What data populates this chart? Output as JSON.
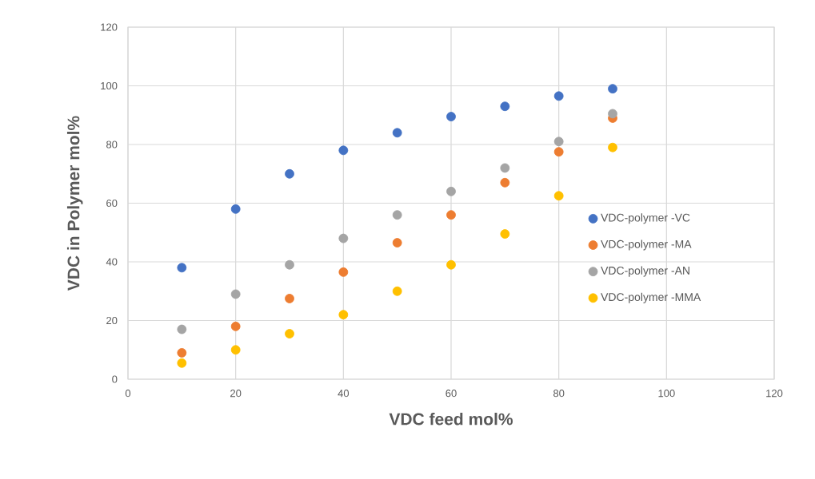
{
  "chart_data": {
    "type": "scatter",
    "xlabel": "VDC feed mol%",
    "ylabel": "VDC in Polymer mol%",
    "x": [
      10,
      20,
      30,
      40,
      50,
      60,
      70,
      80,
      90
    ],
    "series": [
      {
        "name": "VDC-polymer -VC",
        "color": "#4472c4",
        "values": [
          38,
          58,
          70,
          78,
          84,
          89.5,
          93,
          96.5,
          99
        ]
      },
      {
        "name": "VDC-polymer -MA",
        "color": "#ed7d31",
        "values": [
          9,
          18,
          27.5,
          36.5,
          46.5,
          56,
          67,
          77.5,
          89
        ]
      },
      {
        "name": "VDC-polymer -AN",
        "color": "#a5a5a5",
        "values": [
          17,
          29,
          39,
          48,
          56,
          64,
          72,
          81,
          90.5
        ]
      },
      {
        "name": "VDC-polymer -MMA",
        "color": "#ffc000",
        "values": [
          5.5,
          10,
          15.5,
          22,
          30,
          39,
          49.5,
          62.5,
          79
        ]
      }
    ],
    "xlim": [
      0,
      120
    ],
    "ylim": [
      0,
      120
    ],
    "xticks": [
      0,
      20,
      40,
      60,
      80,
      100,
      120
    ],
    "yticks": [
      0,
      20,
      40,
      60,
      80,
      100,
      120
    ],
    "grid": true,
    "legend": "right",
    "marker": "circle"
  }
}
